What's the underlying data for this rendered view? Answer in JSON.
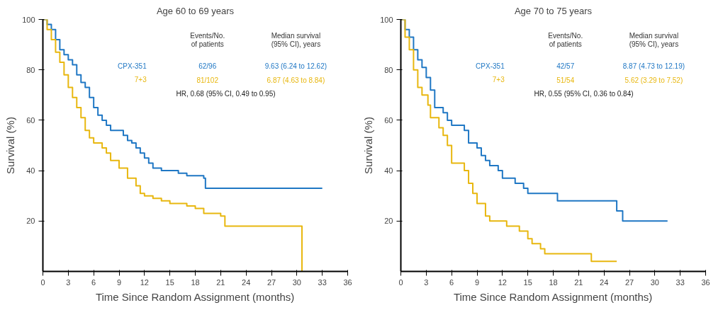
{
  "chart_data": [
    {
      "type": "step",
      "title": "Age 60 to 69 years",
      "xlabel": "Time Since Random Assignment (months)",
      "ylabel": "Survival (%)",
      "xlim": [
        0,
        36
      ],
      "ylim": [
        0,
        100
      ],
      "xticks": [
        0,
        3,
        6,
        9,
        12,
        15,
        18,
        21,
        24,
        27,
        30,
        33,
        36
      ],
      "yticks": [
        20,
        40,
        60,
        80,
        100
      ],
      "grid": false,
      "marker": "none",
      "series": [
        {
          "name": "CPX-351",
          "color": "#1f77c4",
          "x": [
            0,
            0.5,
            1,
            1.5,
            2,
            2.5,
            3,
            3.5,
            4,
            4.5,
            5,
            5.5,
            6,
            6.5,
            7,
            7.5,
            8,
            9,
            9.5,
            10,
            10.5,
            11,
            11.5,
            12,
            12.5,
            13,
            14,
            16,
            17,
            19,
            19.2,
            33
          ],
          "values": [
            100,
            98,
            96,
            92,
            88,
            86,
            84,
            82,
            78,
            75,
            73,
            69,
            65,
            62,
            60,
            58,
            56,
            56,
            54,
            52,
            51,
            49,
            47,
            45,
            43,
            41,
            40,
            39,
            38,
            37,
            33,
            33
          ]
        },
        {
          "name": "7+3",
          "color": "#e8b70f",
          "x": [
            0,
            0.5,
            1,
            1.5,
            2,
            2.5,
            3,
            3.5,
            4,
            4.5,
            5,
            5.5,
            6,
            7,
            7.5,
            8,
            9,
            10,
            11,
            11.5,
            12,
            13,
            14,
            15,
            17,
            18,
            19,
            21,
            21.5,
            30.6,
            30.6
          ],
          "values": [
            100,
            96,
            92,
            87,
            83,
            78,
            73,
            69,
            65,
            61,
            56,
            53,
            51,
            49,
            47,
            44,
            41,
            37,
            34,
            31,
            30,
            29,
            28,
            27,
            26,
            25,
            23,
            22,
            18,
            18,
            0
          ]
        }
      ],
      "annotations": [
        "Events/No.\nof patients",
        "Median survival\n(95% CI), years",
        "62/96",
        "9.63 (6.24 to 12.62)",
        "81/102",
        "6.87 (4.63 to 8.84)",
        "HR, 0.68 (95% CI, 0.49 to 0.95)"
      ]
    },
    {
      "type": "step",
      "title": "Age 70 to 75 years",
      "xlabel": "Time Since Random Assignment (months)",
      "ylabel": "Survival (%)",
      "xlim": [
        0,
        36
      ],
      "ylim": [
        0,
        100
      ],
      "xticks": [
        0,
        3,
        6,
        9,
        12,
        15,
        18,
        21,
        24,
        27,
        30,
        33,
        36
      ],
      "yticks": [
        20,
        40,
        60,
        80,
        100
      ],
      "grid": false,
      "marker": "none",
      "series": [
        {
          "name": "CPX-351",
          "color": "#1f77c4",
          "x": [
            0,
            0.5,
            1,
            1.5,
            2,
            2.5,
            3,
            3.5,
            4,
            5,
            5.5,
            6,
            7.5,
            8,
            9,
            9.5,
            10,
            10.5,
            11.5,
            12,
            13.5,
            14.5,
            15,
            18.5,
            25.5,
            26.2,
            31.5
          ],
          "values": [
            100,
            96,
            93,
            88,
            84,
            81,
            77,
            72,
            65,
            63,
            60,
            58,
            56,
            51,
            49,
            46,
            44,
            42,
            40,
            37,
            35,
            33,
            31,
            28,
            24,
            20,
            20
          ]
        },
        {
          "name": "7+3",
          "color": "#e8b70f",
          "x": [
            0,
            0.5,
            1,
            1.5,
            2,
            2.5,
            3.2,
            3.5,
            4.5,
            5,
            5.5,
            6,
            7.5,
            8,
            8.5,
            9,
            10,
            10.5,
            12.5,
            14,
            15,
            15.5,
            16.5,
            17,
            22.5,
            25.5
          ],
          "values": [
            100,
            93,
            88,
            80,
            73,
            70,
            66,
            61,
            57,
            54,
            50,
            43,
            40,
            35,
            31,
            27,
            22,
            20,
            18,
            16,
            13,
            11,
            9,
            7,
            4,
            4
          ]
        }
      ],
      "annotations": [
        "Events/No.\nof patients",
        "Median survival\n(95% CI), years",
        "42/57",
        "8.87 (4.73 to 12.19)",
        "51/54",
        "5.62 (3.29 to 7.52)",
        "HR, 0.55 (95% CI, 0.36 to 0.84)"
      ]
    }
  ]
}
